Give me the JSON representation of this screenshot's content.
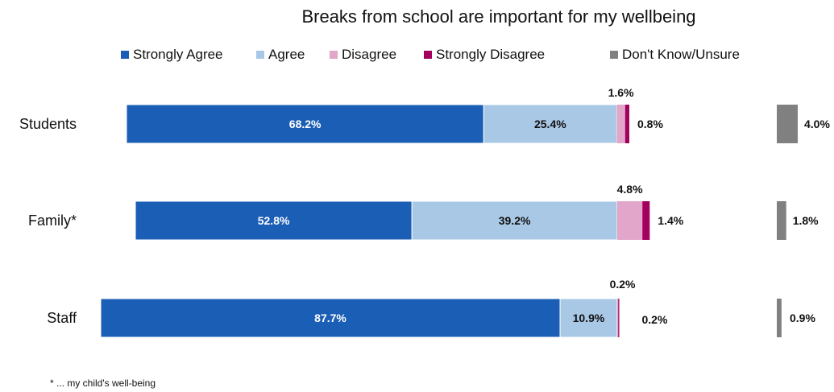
{
  "chart_data": {
    "type": "bar",
    "orientation": "horizontal",
    "stacked": true,
    "title": "Breaks from school are important for my wellbeing",
    "categories": [
      "Students",
      "Family*",
      "Staff"
    ],
    "series": [
      {
        "name": "Strongly Agree",
        "values": [
          68.2,
          52.8,
          87.7
        ],
        "labels": [
          "68.2%",
          "52.8%",
          "87.7%"
        ],
        "color": "#1B5EB5"
      },
      {
        "name": "Agree",
        "values": [
          25.4,
          39.2,
          10.9
        ],
        "labels": [
          "25.4%",
          "39.2%",
          "10.9%"
        ],
        "color": "#A9C8E6"
      },
      {
        "name": "Disagree",
        "values": [
          1.6,
          4.8,
          0.2
        ],
        "labels": [
          "1.6%",
          "4.8%",
          "0.2%"
        ],
        "color": "#E1A6C9"
      },
      {
        "name": "Strongly Disagree",
        "values": [
          0.8,
          1.4,
          0.2
        ],
        "labels": [
          "0.8%",
          "1.4%",
          "0.2%"
        ],
        "color": "#A3005E"
      },
      {
        "name": "Don't Know/Unsure",
        "values": [
          4.0,
          1.8,
          0.9
        ],
        "labels": [
          "4.0%",
          "1.8%",
          "0.9%"
        ],
        "color": "#808080"
      }
    ],
    "legend_position": "top",
    "footnote": "* ... my child's well-being",
    "grid": false
  }
}
